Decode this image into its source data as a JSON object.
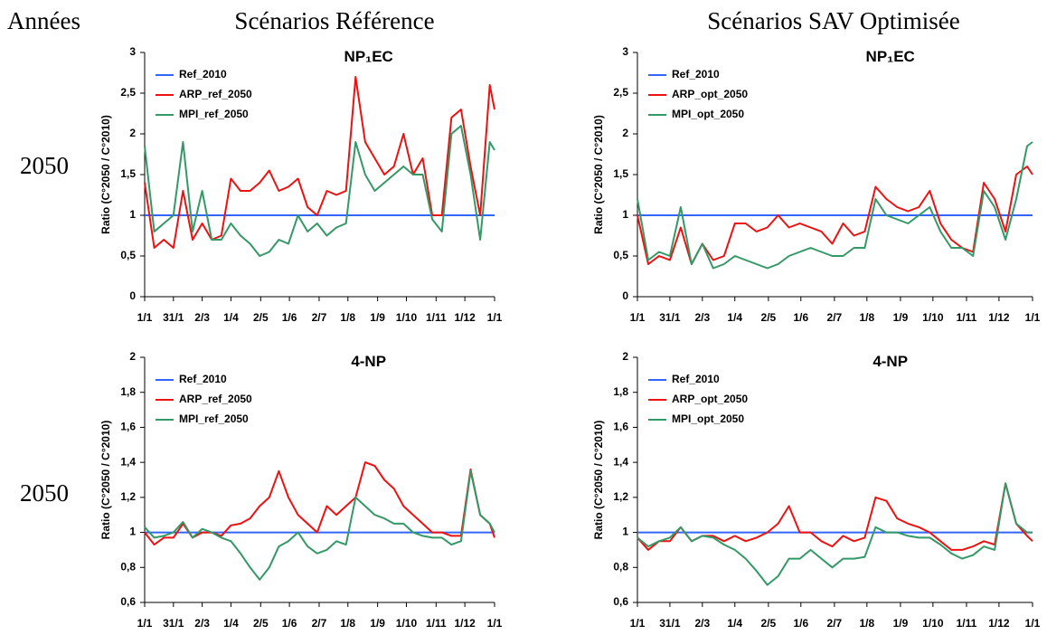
{
  "header": {
    "row_label": "Années",
    "columns": [
      "Scénarios Référence",
      "Scénarios SAV Optimisée"
    ],
    "rows": [
      "2050",
      "2050"
    ]
  },
  "chart_data": [
    {
      "type": "line",
      "title": "NP₁EC",
      "y_label": "Ratio (C°2050 / C°2010)",
      "x": [
        0,
        10,
        20,
        30,
        40,
        50,
        60,
        70,
        80,
        90,
        100,
        110,
        120,
        130,
        140,
        150,
        160,
        170,
        180,
        190,
        200,
        210,
        220,
        230,
        240,
        250,
        260,
        270,
        280,
        290,
        300,
        310,
        320,
        330,
        340,
        350,
        360,
        365
      ],
      "xlim": [
        0,
        365
      ],
      "xticks": [
        {
          "value": 0,
          "label": "1/1"
        },
        {
          "value": 30,
          "label": "31/1"
        },
        {
          "value": 60,
          "label": "2/3"
        },
        {
          "value": 90,
          "label": "1/4"
        },
        {
          "value": 121,
          "label": "2/5"
        },
        {
          "value": 151,
          "label": "1/6"
        },
        {
          "value": 182,
          "label": "2/7"
        },
        {
          "value": 212,
          "label": "1/8"
        },
        {
          "value": 243,
          "label": "1/9"
        },
        {
          "value": 273,
          "label": "1/10"
        },
        {
          "value": 304,
          "label": "1/11"
        },
        {
          "value": 334,
          "label": "1/12"
        },
        {
          "value": 365,
          "label": "1/1"
        }
      ],
      "ylim": [
        0,
        3
      ],
      "yticks": [
        0,
        {
          "value": 0.5,
          "label": "0,5"
        },
        1,
        {
          "value": 1.5,
          "label": "1,5"
        },
        2,
        {
          "value": 2.5,
          "label": "2,5"
        },
        3
      ],
      "series": [
        {
          "name": "Ref_2010",
          "color": "#3366ff",
          "values": [
            1,
            1,
            1,
            1,
            1,
            1,
            1,
            1,
            1,
            1,
            1,
            1,
            1,
            1,
            1,
            1,
            1,
            1,
            1,
            1,
            1,
            1,
            1,
            1,
            1,
            1,
            1,
            1,
            1,
            1,
            1,
            1,
            1,
            1,
            1,
            1,
            1,
            1
          ]
        },
        {
          "name": "ARP_ref_2050",
          "color": "#ee1111",
          "values": [
            1.4,
            0.6,
            0.7,
            0.6,
            1.3,
            0.7,
            0.9,
            0.7,
            0.75,
            1.45,
            1.3,
            1.3,
            1.4,
            1.55,
            1.3,
            1.35,
            1.45,
            1.1,
            1.0,
            1.3,
            1.25,
            1.3,
            2.7,
            1.9,
            1.7,
            1.5,
            1.6,
            2.0,
            1.5,
            1.7,
            1.0,
            1.0,
            2.2,
            2.3,
            1.6,
            1.0,
            2.6,
            2.3
          ]
        },
        {
          "name": "MPI_ref_2050",
          "color": "#339966",
          "values": [
            1.85,
            0.8,
            0.9,
            1.0,
            1.9,
            0.8,
            1.3,
            0.7,
            0.7,
            0.9,
            0.75,
            0.65,
            0.5,
            0.55,
            0.7,
            0.65,
            1.0,
            0.8,
            0.9,
            0.75,
            0.85,
            0.9,
            1.9,
            1.5,
            1.3,
            1.4,
            1.5,
            1.6,
            1.5,
            1.5,
            0.95,
            0.8,
            2.0,
            2.1,
            1.5,
            0.7,
            1.9,
            1.8
          ]
        }
      ]
    },
    {
      "type": "line",
      "title": "NP₁EC",
      "y_label": "Ratio (C°2050 / C°2010)",
      "x": [
        0,
        10,
        20,
        30,
        40,
        50,
        60,
        70,
        80,
        90,
        100,
        110,
        120,
        130,
        140,
        150,
        160,
        170,
        180,
        190,
        200,
        210,
        220,
        230,
        240,
        250,
        260,
        270,
        280,
        290,
        300,
        310,
        320,
        330,
        340,
        350,
        360,
        365
      ],
      "xlim": [
        0,
        365
      ],
      "xticks": [
        {
          "value": 0,
          "label": "1/1"
        },
        {
          "value": 30,
          "label": "31/1"
        },
        {
          "value": 60,
          "label": "2/3"
        },
        {
          "value": 90,
          "label": "1/4"
        },
        {
          "value": 121,
          "label": "2/5"
        },
        {
          "value": 151,
          "label": "1/6"
        },
        {
          "value": 182,
          "label": "2/7"
        },
        {
          "value": 212,
          "label": "1/8"
        },
        {
          "value": 243,
          "label": "1/9"
        },
        {
          "value": 273,
          "label": "1/10"
        },
        {
          "value": 304,
          "label": "1/11"
        },
        {
          "value": 334,
          "label": "1/12"
        },
        {
          "value": 365,
          "label": "1/1"
        }
      ],
      "ylim": [
        0,
        3
      ],
      "yticks": [
        0,
        {
          "value": 0.5,
          "label": "0,5"
        },
        1,
        {
          "value": 1.5,
          "label": "1,5"
        },
        2,
        {
          "value": 2.5,
          "label": "2,5"
        },
        3
      ],
      "series": [
        {
          "name": "Ref_2010",
          "color": "#3366ff",
          "values": [
            1,
            1,
            1,
            1,
            1,
            1,
            1,
            1,
            1,
            1,
            1,
            1,
            1,
            1,
            1,
            1,
            1,
            1,
            1,
            1,
            1,
            1,
            1,
            1,
            1,
            1,
            1,
            1,
            1,
            1,
            1,
            1,
            1,
            1,
            1,
            1,
            1,
            1
          ]
        },
        {
          "name": "ARP_opt_2050",
          "color": "#ee1111",
          "values": [
            1.0,
            0.4,
            0.5,
            0.45,
            0.85,
            0.4,
            0.65,
            0.45,
            0.5,
            0.9,
            0.9,
            0.8,
            0.85,
            1.0,
            0.85,
            0.9,
            0.85,
            0.8,
            0.65,
            0.9,
            0.75,
            0.8,
            1.35,
            1.2,
            1.1,
            1.05,
            1.1,
            1.3,
            0.9,
            0.7,
            0.6,
            0.55,
            1.4,
            1.2,
            0.8,
            1.5,
            1.6,
            1.5
          ]
        },
        {
          "name": "MPI_opt_2050",
          "color": "#339966",
          "values": [
            1.2,
            0.45,
            0.55,
            0.5,
            1.1,
            0.4,
            0.65,
            0.35,
            0.4,
            0.5,
            0.45,
            0.4,
            0.35,
            0.4,
            0.5,
            0.55,
            0.6,
            0.55,
            0.5,
            0.5,
            0.6,
            0.6,
            1.2,
            1.0,
            0.95,
            0.9,
            1.0,
            1.1,
            0.8,
            0.6,
            0.6,
            0.5,
            1.3,
            1.1,
            0.7,
            1.2,
            1.85,
            1.9
          ]
        }
      ]
    },
    {
      "type": "line",
      "title": "4-NP",
      "y_label": "Ratio (C°2050 / C°2010)",
      "x": [
        0,
        10,
        20,
        30,
        40,
        50,
        60,
        70,
        80,
        90,
        100,
        110,
        120,
        130,
        140,
        150,
        160,
        170,
        180,
        190,
        200,
        210,
        220,
        230,
        240,
        250,
        260,
        270,
        280,
        290,
        300,
        310,
        320,
        330,
        340,
        350,
        360,
        365
      ],
      "xlim": [
        0,
        365
      ],
      "xticks": [
        {
          "value": 0,
          "label": "1/1"
        },
        {
          "value": 30,
          "label": "31/1"
        },
        {
          "value": 60,
          "label": "2/3"
        },
        {
          "value": 90,
          "label": "1/4"
        },
        {
          "value": 121,
          "label": "2/5"
        },
        {
          "value": 151,
          "label": "1/6"
        },
        {
          "value": 182,
          "label": "2/7"
        },
        {
          "value": 212,
          "label": "1/8"
        },
        {
          "value": 243,
          "label": "1/9"
        },
        {
          "value": 273,
          "label": "1/10"
        },
        {
          "value": 304,
          "label": "1/11"
        },
        {
          "value": 334,
          "label": "1/12"
        },
        {
          "value": 365,
          "label": "1/1"
        }
      ],
      "ylim": [
        0.6,
        2
      ],
      "yticks": [
        {
          "value": 0.6,
          "label": "0,6"
        },
        {
          "value": 0.8,
          "label": "0,8"
        },
        1,
        {
          "value": 1.2,
          "label": "1,2"
        },
        {
          "value": 1.4,
          "label": "1,4"
        },
        {
          "value": 1.6,
          "label": "1,6"
        },
        {
          "value": 1.8,
          "label": "1,8"
        },
        2
      ],
      "series": [
        {
          "name": "Ref_2010",
          "color": "#3366ff",
          "values": [
            1,
            1,
            1,
            1,
            1,
            1,
            1,
            1,
            1,
            1,
            1,
            1,
            1,
            1,
            1,
            1,
            1,
            1,
            1,
            1,
            1,
            1,
            1,
            1,
            1,
            1,
            1,
            1,
            1,
            1,
            1,
            1,
            1,
            1,
            1,
            1,
            1,
            1
          ]
        },
        {
          "name": "ARP_ref_2050",
          "color": "#ee1111",
          "values": [
            1.0,
            0.93,
            0.97,
            0.97,
            1.05,
            0.97,
            1.0,
            1.0,
            0.98,
            1.04,
            1.05,
            1.08,
            1.15,
            1.2,
            1.35,
            1.2,
            1.1,
            1.05,
            1.0,
            1.15,
            1.1,
            1.15,
            1.2,
            1.4,
            1.38,
            1.3,
            1.25,
            1.15,
            1.1,
            1.05,
            1.0,
            1.0,
            0.98,
            0.98,
            1.36,
            1.1,
            1.05,
            0.97
          ]
        },
        {
          "name": "MPI_ref_2050",
          "color": "#339966",
          "values": [
            1.03,
            0.97,
            0.98,
            1.0,
            1.06,
            0.97,
            1.02,
            1.0,
            0.97,
            0.95,
            0.88,
            0.8,
            0.73,
            0.8,
            0.92,
            0.95,
            1.0,
            0.92,
            0.88,
            0.9,
            0.95,
            0.93,
            1.2,
            1.15,
            1.1,
            1.08,
            1.05,
            1.05,
            1.0,
            0.98,
            0.97,
            0.97,
            0.93,
            0.95,
            1.35,
            1.1,
            1.05,
            1.0
          ]
        }
      ]
    },
    {
      "type": "line",
      "title": "4-NP",
      "y_label": "Ratio (C°2050 / C°2010)",
      "x": [
        0,
        10,
        20,
        30,
        40,
        50,
        60,
        70,
        80,
        90,
        100,
        110,
        120,
        130,
        140,
        150,
        160,
        170,
        180,
        190,
        200,
        210,
        220,
        230,
        240,
        250,
        260,
        270,
        280,
        290,
        300,
        310,
        320,
        330,
        340,
        350,
        360,
        365
      ],
      "xlim": [
        0,
        365
      ],
      "xticks": [
        {
          "value": 0,
          "label": "1/1"
        },
        {
          "value": 30,
          "label": "31/1"
        },
        {
          "value": 60,
          "label": "2/3"
        },
        {
          "value": 90,
          "label": "1/4"
        },
        {
          "value": 121,
          "label": "2/5"
        },
        {
          "value": 151,
          "label": "1/6"
        },
        {
          "value": 182,
          "label": "2/7"
        },
        {
          "value": 212,
          "label": "1/8"
        },
        {
          "value": 243,
          "label": "1/9"
        },
        {
          "value": 273,
          "label": "1/10"
        },
        {
          "value": 304,
          "label": "1/11"
        },
        {
          "value": 334,
          "label": "1/12"
        },
        {
          "value": 365,
          "label": "1/1"
        }
      ],
      "ylim": [
        0.6,
        2
      ],
      "yticks": [
        {
          "value": 0.6,
          "label": "0,6"
        },
        {
          "value": 0.8,
          "label": "0,8"
        },
        1,
        {
          "value": 1.2,
          "label": "1,2"
        },
        {
          "value": 1.4,
          "label": "1,4"
        },
        {
          "value": 1.6,
          "label": "1,6"
        },
        {
          "value": 1.8,
          "label": "1,8"
        },
        2
      ],
      "series": [
        {
          "name": "Ref_2010",
          "color": "#3366ff",
          "values": [
            1,
            1,
            1,
            1,
            1,
            1,
            1,
            1,
            1,
            1,
            1,
            1,
            1,
            1,
            1,
            1,
            1,
            1,
            1,
            1,
            1,
            1,
            1,
            1,
            1,
            1,
            1,
            1,
            1,
            1,
            1,
            1,
            1,
            1,
            1,
            1,
            1,
            1
          ]
        },
        {
          "name": "ARP_opt_2050",
          "color": "#ee1111",
          "values": [
            0.97,
            0.9,
            0.95,
            0.95,
            1.03,
            0.95,
            0.98,
            0.98,
            0.95,
            0.98,
            0.95,
            0.97,
            1.0,
            1.05,
            1.15,
            1.0,
            1.0,
            0.95,
            0.92,
            0.98,
            0.95,
            0.97,
            1.2,
            1.18,
            1.08,
            1.05,
            1.03,
            1.0,
            0.95,
            0.9,
            0.9,
            0.92,
            0.95,
            0.93,
            1.28,
            1.05,
            0.98,
            0.95
          ]
        },
        {
          "name": "MPI_opt_2050",
          "color": "#339966",
          "values": [
            0.97,
            0.92,
            0.95,
            0.97,
            1.03,
            0.95,
            0.98,
            0.97,
            0.93,
            0.9,
            0.85,
            0.78,
            0.7,
            0.75,
            0.85,
            0.85,
            0.9,
            0.85,
            0.8,
            0.85,
            0.85,
            0.86,
            1.03,
            1.0,
            1.0,
            0.98,
            0.97,
            0.97,
            0.93,
            0.88,
            0.85,
            0.87,
            0.92,
            0.9,
            1.28,
            1.05,
            1.0,
            1.0
          ]
        }
      ]
    }
  ]
}
